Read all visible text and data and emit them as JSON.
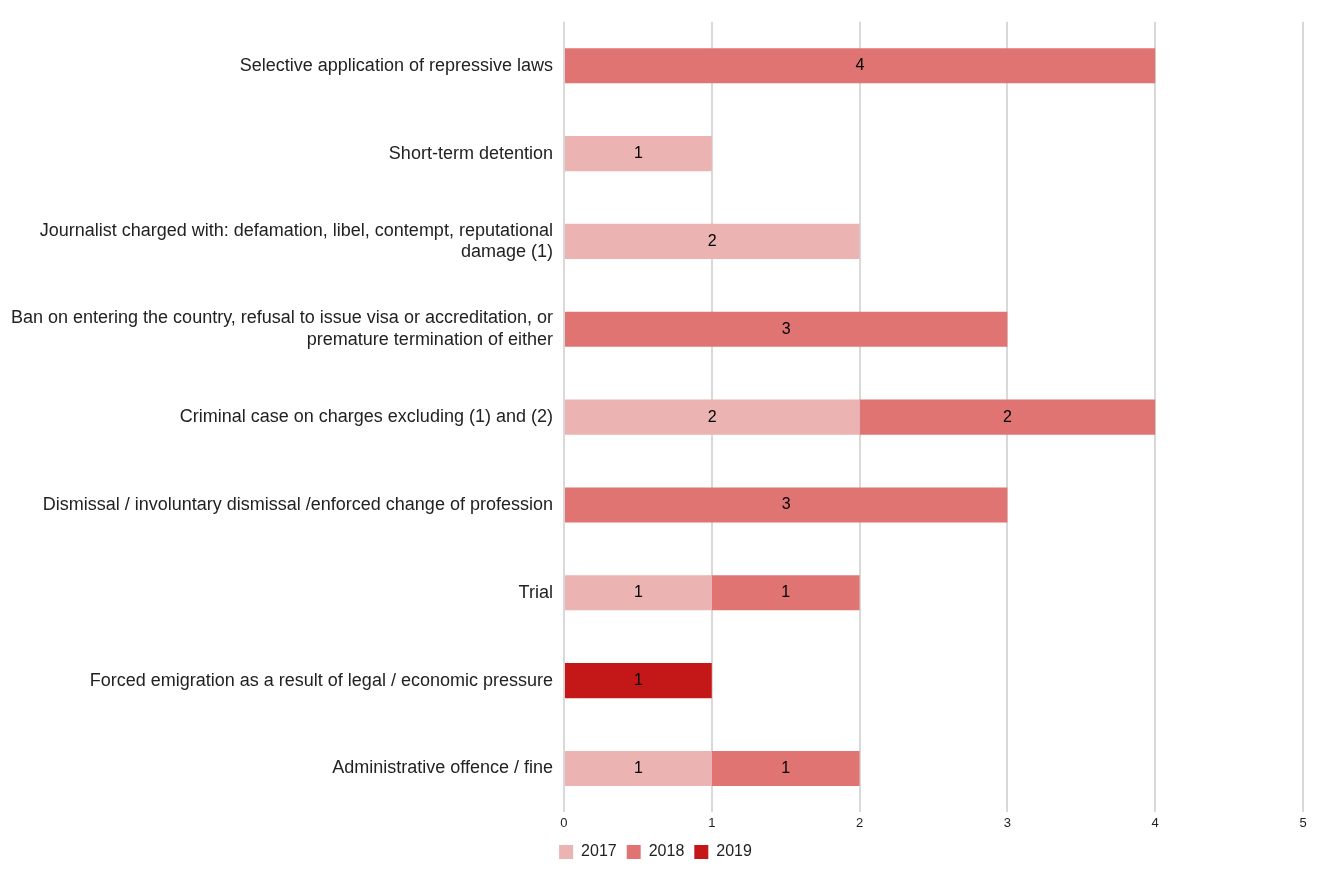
{
  "chart_data": {
    "type": "bar",
    "orientation": "horizontal",
    "stacked": true,
    "categories": [
      "Selective application of repressive laws",
      "Short-term detention",
      "Journalist charged with: defamation, libel, contempt, reputational damage (1)",
      "Ban on entering the country, refusal to issue visa or accreditation, or premature termination of either",
      "Criminal case on charges excluding (1) and (2)",
      "Dismissal / involuntary dismissal /enforced change of profession",
      "Trial",
      "Forced emigration as a result of legal / economic pressure",
      "Administrative offence / fine"
    ],
    "series": [
      {
        "name": "2017",
        "color": "#ebb3b2",
        "values": [
          null,
          1,
          2,
          null,
          2,
          null,
          1,
          null,
          1
        ]
      },
      {
        "name": "2018",
        "color": "#df7473",
        "values": [
          4,
          null,
          null,
          3,
          2,
          3,
          1,
          null,
          1
        ]
      },
      {
        "name": "2019",
        "color": "#c41818",
        "values": [
          null,
          null,
          null,
          null,
          null,
          null,
          null,
          1,
          null
        ]
      }
    ],
    "xlim": [
      0,
      5
    ],
    "xticks": [
      0,
      1,
      2,
      3,
      4,
      5
    ],
    "grid": "x",
    "legend": "bottom",
    "data_labels": true
  }
}
